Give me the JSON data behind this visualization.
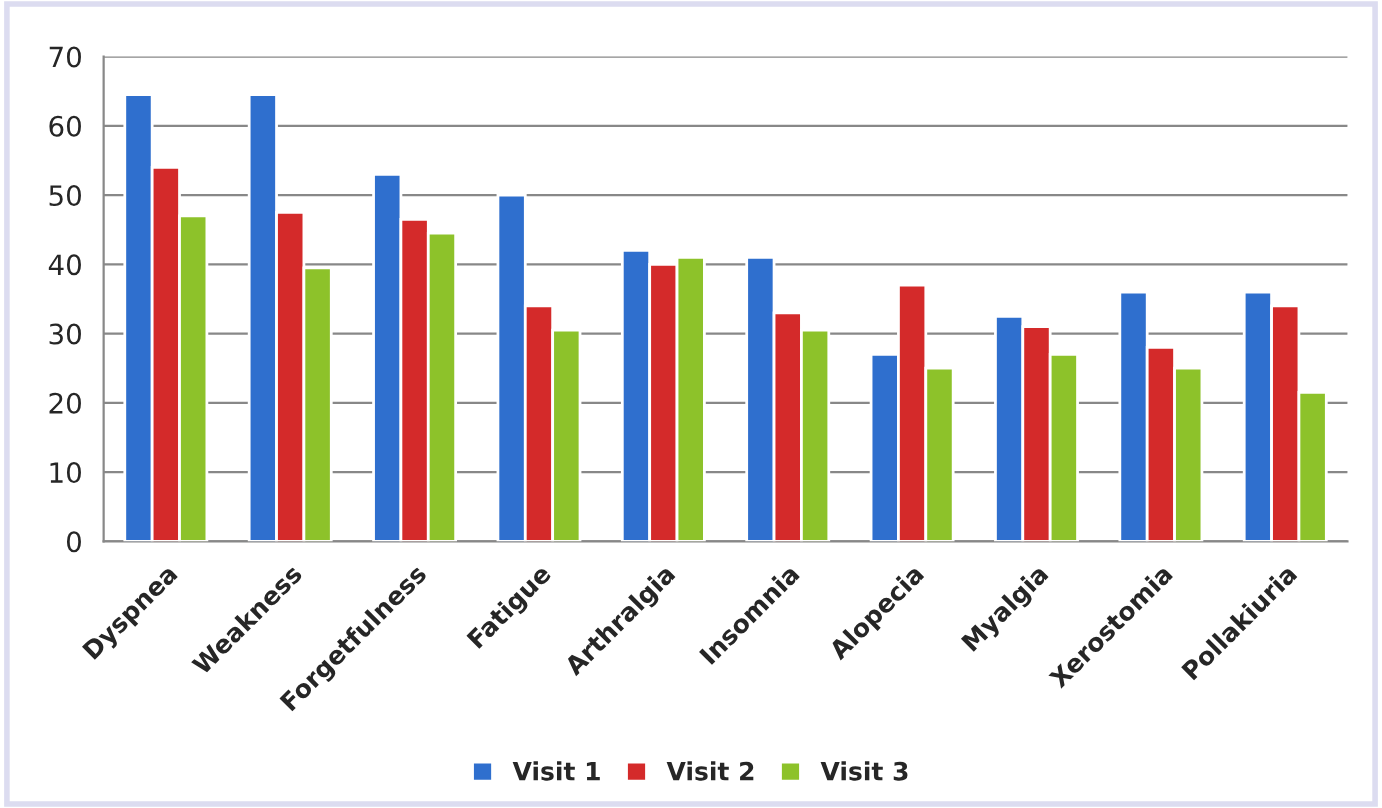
{
  "chart_data": {
    "type": "bar",
    "categories": [
      "Dyspnea",
      "Weakness",
      "Forgetfulness",
      "Fatigue",
      "Arthralgia",
      "Insomnia",
      "Alopecia",
      "Myalgia",
      "Xerostomia",
      "Pollakiuria"
    ],
    "series": [
      {
        "name": "Visit 1",
        "color": "#2f6fce",
        "values": [
          64.5,
          64.5,
          53,
          50,
          42,
          41,
          27,
          32.5,
          36,
          36
        ]
      },
      {
        "name": "Visit 2",
        "color": "#d42a2a",
        "values": [
          54,
          47.5,
          46.5,
          34,
          40,
          33,
          37,
          31,
          28,
          34
        ]
      },
      {
        "name": "Visit 3",
        "color": "#8dc22a",
        "values": [
          47,
          39.5,
          44.5,
          30.5,
          41,
          30.5,
          25,
          27,
          25,
          21.5
        ]
      }
    ],
    "ylim": [
      0,
      70
    ],
    "yticks": [
      0,
      10,
      20,
      30,
      40,
      50,
      60,
      70
    ],
    "grid": "y",
    "legend": "bottom"
  }
}
